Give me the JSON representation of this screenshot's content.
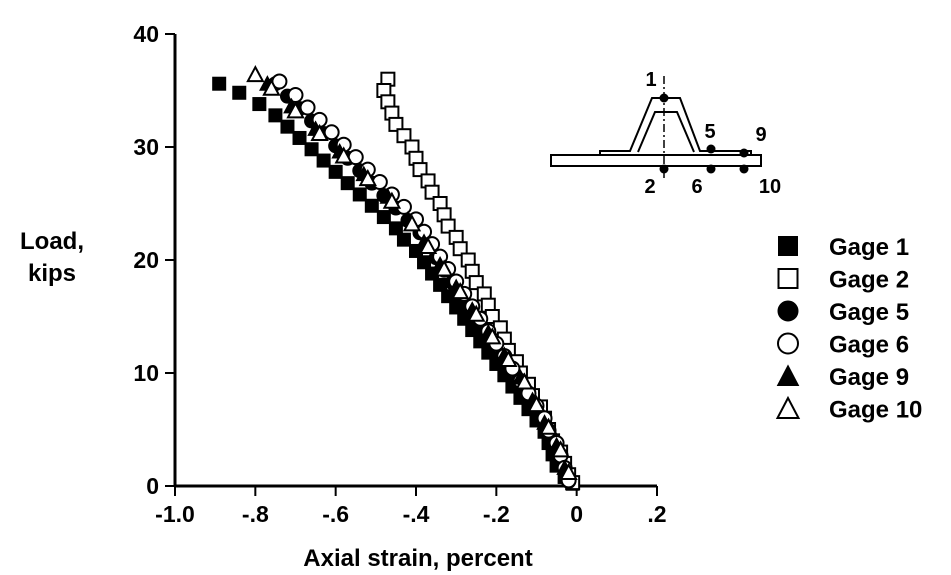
{
  "chart_data": {
    "type": "scatter",
    "title": "",
    "xlabel": "Axial strain, percent",
    "ylabel_lines": [
      "Load,",
      "kips"
    ],
    "xlim": [
      -1.0,
      0.2
    ],
    "ylim": [
      0,
      40
    ],
    "x_ticks": [
      -1.0,
      -0.8,
      -0.6,
      -0.4,
      -0.2,
      0,
      0.2
    ],
    "x_tick_labels": [
      "-1.0",
      "-.8",
      "-.6",
      "-.4",
      "-.2",
      "0",
      ".2"
    ],
    "y_ticks": [
      0,
      10,
      20,
      30,
      40
    ],
    "y_tick_labels": [
      "0",
      "10",
      "20",
      "30",
      "40"
    ],
    "grid": false,
    "legend_position": "right",
    "series": [
      {
        "name": "Gage 1",
        "marker": "filled-square",
        "points": [
          [
            -0.89,
            35.6
          ],
          [
            -0.84,
            34.8
          ],
          [
            -0.79,
            33.8
          ],
          [
            -0.75,
            32.8
          ],
          [
            -0.72,
            31.8
          ],
          [
            -0.69,
            30.8
          ],
          [
            -0.66,
            29.8
          ],
          [
            -0.63,
            28.8
          ],
          [
            -0.6,
            27.8
          ],
          [
            -0.57,
            26.8
          ],
          [
            -0.54,
            25.8
          ],
          [
            -0.51,
            24.8
          ],
          [
            -0.48,
            23.8
          ],
          [
            -0.45,
            22.8
          ],
          [
            -0.43,
            21.8
          ],
          [
            -0.4,
            20.8
          ],
          [
            -0.38,
            19.8
          ],
          [
            -0.36,
            18.8
          ],
          [
            -0.34,
            17.8
          ],
          [
            -0.32,
            16.8
          ],
          [
            -0.3,
            15.8
          ],
          [
            -0.28,
            14.8
          ],
          [
            -0.26,
            13.8
          ],
          [
            -0.24,
            12.8
          ],
          [
            -0.22,
            11.8
          ],
          [
            -0.2,
            10.8
          ],
          [
            -0.18,
            9.8
          ],
          [
            -0.16,
            8.8
          ],
          [
            -0.14,
            7.8
          ],
          [
            -0.12,
            6.8
          ],
          [
            -0.1,
            5.8
          ],
          [
            -0.08,
            4.8
          ],
          [
            -0.07,
            3.8
          ],
          [
            -0.06,
            2.8
          ],
          [
            -0.05,
            1.8
          ],
          [
            -0.03,
            0.8
          ],
          [
            -0.01,
            0.2
          ]
        ]
      },
      {
        "name": "Gage 2",
        "marker": "open-square",
        "points": [
          [
            -0.47,
            36.0
          ],
          [
            -0.48,
            35.0
          ],
          [
            -0.47,
            34.0
          ],
          [
            -0.46,
            33.0
          ],
          [
            -0.45,
            32.0
          ],
          [
            -0.43,
            31.0
          ],
          [
            -0.41,
            30.0
          ],
          [
            -0.4,
            29.0
          ],
          [
            -0.39,
            28.0
          ],
          [
            -0.37,
            27.0
          ],
          [
            -0.36,
            26.0
          ],
          [
            -0.34,
            25.0
          ],
          [
            -0.33,
            24.0
          ],
          [
            -0.32,
            23.0
          ],
          [
            -0.3,
            22.0
          ],
          [
            -0.29,
            21.0
          ],
          [
            -0.27,
            20.0
          ],
          [
            -0.26,
            19.0
          ],
          [
            -0.25,
            18.0
          ],
          [
            -0.23,
            17.0
          ],
          [
            -0.22,
            16.0
          ],
          [
            -0.21,
            15.0
          ],
          [
            -0.19,
            14.0
          ],
          [
            -0.18,
            13.0
          ],
          [
            -0.17,
            12.0
          ],
          [
            -0.15,
            11.0
          ],
          [
            -0.14,
            10.0
          ],
          [
            -0.12,
            9.0
          ],
          [
            -0.11,
            8.0
          ],
          [
            -0.09,
            7.0
          ],
          [
            -0.08,
            6.0
          ],
          [
            -0.07,
            5.0
          ],
          [
            -0.06,
            4.0
          ],
          [
            -0.04,
            3.0
          ],
          [
            -0.03,
            2.0
          ],
          [
            -0.02,
            1.0
          ],
          [
            -0.01,
            0.3
          ]
        ]
      },
      {
        "name": "Gage 5",
        "marker": "filled-circle",
        "points": [
          [
            -0.75,
            35.6
          ],
          [
            -0.72,
            34.5
          ],
          [
            -0.69,
            33.4
          ],
          [
            -0.66,
            32.3
          ],
          [
            -0.63,
            31.2
          ],
          [
            -0.6,
            30.1
          ],
          [
            -0.57,
            29.0
          ],
          [
            -0.54,
            27.9
          ],
          [
            -0.51,
            26.8
          ],
          [
            -0.48,
            25.7
          ],
          [
            -0.45,
            24.6
          ],
          [
            -0.42,
            23.5
          ],
          [
            -0.39,
            22.4
          ],
          [
            -0.37,
            21.3
          ],
          [
            -0.35,
            20.2
          ],
          [
            -0.33,
            19.1
          ],
          [
            -0.31,
            18.0
          ],
          [
            -0.29,
            16.9
          ],
          [
            -0.27,
            15.8
          ],
          [
            -0.25,
            14.7
          ],
          [
            -0.23,
            13.6
          ],
          [
            -0.21,
            12.5
          ],
          [
            -0.19,
            11.4
          ],
          [
            -0.17,
            10.3
          ],
          [
            -0.15,
            9.2
          ],
          [
            -0.13,
            8.1
          ],
          [
            -0.11,
            7.0
          ],
          [
            -0.09,
            5.9
          ],
          [
            -0.07,
            4.8
          ],
          [
            -0.06,
            3.7
          ],
          [
            -0.05,
            2.6
          ],
          [
            -0.03,
            1.5
          ],
          [
            -0.02,
            0.4
          ]
        ]
      },
      {
        "name": "Gage 6",
        "marker": "open-circle",
        "points": [
          [
            -0.74,
            35.8
          ],
          [
            -0.7,
            34.6
          ],
          [
            -0.67,
            33.5
          ],
          [
            -0.64,
            32.4
          ],
          [
            -0.61,
            31.3
          ],
          [
            -0.58,
            30.2
          ],
          [
            -0.55,
            29.1
          ],
          [
            -0.52,
            28.0
          ],
          [
            -0.49,
            26.9
          ],
          [
            -0.46,
            25.8
          ],
          [
            -0.43,
            24.7
          ],
          [
            -0.4,
            23.6
          ],
          [
            -0.38,
            22.5
          ],
          [
            -0.36,
            21.4
          ],
          [
            -0.34,
            20.3
          ],
          [
            -0.32,
            19.2
          ],
          [
            -0.3,
            18.1
          ],
          [
            -0.28,
            17.0
          ],
          [
            -0.26,
            15.9
          ],
          [
            -0.24,
            14.8
          ],
          [
            -0.22,
            13.7
          ],
          [
            -0.2,
            12.6
          ],
          [
            -0.18,
            11.5
          ],
          [
            -0.16,
            10.4
          ],
          [
            -0.14,
            9.3
          ],
          [
            -0.12,
            8.2
          ],
          [
            -0.1,
            7.1
          ],
          [
            -0.08,
            6.0
          ],
          [
            -0.07,
            4.9
          ],
          [
            -0.05,
            3.8
          ],
          [
            -0.04,
            2.7
          ],
          [
            -0.03,
            1.6
          ],
          [
            -0.02,
            0.5
          ]
        ]
      },
      {
        "name": "Gage 9",
        "marker": "filled-triangle",
        "points": [
          [
            -0.77,
            35.6
          ],
          [
            -0.71,
            33.6
          ],
          [
            -0.65,
            31.6
          ],
          [
            -0.59,
            29.6
          ],
          [
            -0.53,
            27.6
          ],
          [
            -0.47,
            25.6
          ],
          [
            -0.42,
            23.6
          ],
          [
            -0.38,
            21.6
          ],
          [
            -0.34,
            19.6
          ],
          [
            -0.3,
            17.6
          ],
          [
            -0.26,
            15.6
          ],
          [
            -0.22,
            13.6
          ],
          [
            -0.18,
            11.6
          ],
          [
            -0.14,
            9.6
          ],
          [
            -0.11,
            7.6
          ],
          [
            -0.08,
            5.6
          ],
          [
            -0.05,
            3.6
          ],
          [
            -0.03,
            1.6
          ]
        ]
      },
      {
        "name": "Gage 10",
        "marker": "open-triangle",
        "points": [
          [
            -0.8,
            36.4
          ],
          [
            -0.76,
            35.2
          ],
          [
            -0.7,
            33.2
          ],
          [
            -0.64,
            31.2
          ],
          [
            -0.58,
            29.2
          ],
          [
            -0.52,
            27.2
          ],
          [
            -0.46,
            25.2
          ],
          [
            -0.41,
            23.2
          ],
          [
            -0.37,
            21.2
          ],
          [
            -0.33,
            19.2
          ],
          [
            -0.29,
            17.2
          ],
          [
            -0.25,
            15.2
          ],
          [
            -0.21,
            13.2
          ],
          [
            -0.17,
            11.2
          ],
          [
            -0.13,
            9.2
          ],
          [
            -0.1,
            7.2
          ],
          [
            -0.07,
            5.2
          ],
          [
            -0.04,
            3.2
          ],
          [
            -0.02,
            1.2
          ]
        ]
      }
    ]
  },
  "inset": {
    "gage_labels": [
      "1",
      "5",
      "9",
      "2",
      "6",
      "10"
    ]
  }
}
